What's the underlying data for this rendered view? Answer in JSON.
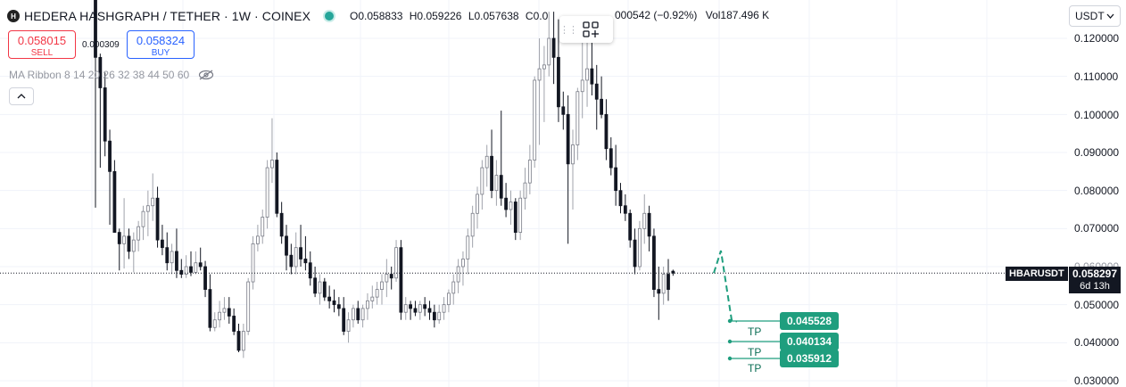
{
  "header": {
    "symbol_initial": "H",
    "title": "HEDERA HASHGRAPH / TETHER · 1W · COINEX",
    "open": "O0.058833",
    "high": "H0.059226",
    "low": "L0.057638",
    "close": "C0.0",
    "change": "000542 (−0.92%)",
    "volume": "Vol187.496 K"
  },
  "trade": {
    "sell_price": "0.058015",
    "sell_label": "SELL",
    "spread": "0.000309",
    "buy_price": "0.058324",
    "buy_label": "BUY"
  },
  "indicator": {
    "name": "MA Ribbon 8 14 20 26 32 38 44 50 60"
  },
  "currency": {
    "value": "USDT"
  },
  "price_axis": {
    "labels": [
      "0.120000",
      "0.110000",
      "0.100000",
      "0.090000",
      "0.080000",
      "0.070000",
      "0.050000",
      "0.040000",
      "0.030000"
    ],
    "partial_label": "0.060000"
  },
  "current": {
    "symbol": "HBARUSDT",
    "price": "0.058297",
    "countdown": "6d 13h",
    "value": 0.058297
  },
  "targets": [
    {
      "label": "TP",
      "price": "0.045528",
      "value": 0.045528
    },
    {
      "label": "TP",
      "price": "0.040134",
      "value": 0.040134
    },
    {
      "label": "TP",
      "price": "0.035912",
      "value": 0.035912
    }
  ],
  "colors": {
    "candle": "#131722",
    "tp": "#1f9e7e",
    "tp_line": "#1f9e7e",
    "projection": "#1f9e7e",
    "sell": "#f23645",
    "buy": "#2962ff"
  },
  "chart_data": {
    "type": "candlestick",
    "y_range": [
      0.028,
      0.13
    ],
    "projection": [
      0.058297,
      0.0642,
      0.0535,
      0.046,
      0.045528
    ],
    "candles": [
      {
        "o": 0.1318,
        "h": 0.1318,
        "l": 0.0755,
        "c": 0.115
      },
      {
        "o": 0.115,
        "h": 0.116,
        "l": 0.086,
        "c": 0.107
      },
      {
        "o": 0.107,
        "h": 0.111,
        "l": 0.089,
        "c": 0.093
      },
      {
        "o": 0.093,
        "h": 0.096,
        "l": 0.071,
        "c": 0.085
      },
      {
        "o": 0.085,
        "h": 0.088,
        "l": 0.069,
        "c": 0.069
      },
      {
        "o": 0.069,
        "h": 0.07,
        "l": 0.059,
        "c": 0.066
      },
      {
        "o": 0.066,
        "h": 0.078,
        "l": 0.0595,
        "c": 0.068
      },
      {
        "o": 0.068,
        "h": 0.07,
        "l": 0.062,
        "c": 0.064
      },
      {
        "o": 0.064,
        "h": 0.069,
        "l": 0.0585,
        "c": 0.067
      },
      {
        "o": 0.067,
        "h": 0.072,
        "l": 0.064,
        "c": 0.0705
      },
      {
        "o": 0.0705,
        "h": 0.076,
        "l": 0.067,
        "c": 0.0745
      },
      {
        "o": 0.0745,
        "h": 0.08,
        "l": 0.068,
        "c": 0.076
      },
      {
        "o": 0.076,
        "h": 0.0845,
        "l": 0.072,
        "c": 0.078
      },
      {
        "o": 0.078,
        "h": 0.081,
        "l": 0.065,
        "c": 0.067
      },
      {
        "o": 0.067,
        "h": 0.071,
        "l": 0.063,
        "c": 0.065
      },
      {
        "o": 0.065,
        "h": 0.069,
        "l": 0.059,
        "c": 0.061
      },
      {
        "o": 0.061,
        "h": 0.066,
        "l": 0.058,
        "c": 0.064
      },
      {
        "o": 0.064,
        "h": 0.07,
        "l": 0.057,
        "c": 0.059
      },
      {
        "o": 0.059,
        "h": 0.062,
        "l": 0.057,
        "c": 0.058
      },
      {
        "o": 0.058,
        "h": 0.063,
        "l": 0.057,
        "c": 0.06
      },
      {
        "o": 0.06,
        "h": 0.064,
        "l": 0.0575,
        "c": 0.0585
      },
      {
        "o": 0.0585,
        "h": 0.064,
        "l": 0.058,
        "c": 0.061
      },
      {
        "o": 0.061,
        "h": 0.065,
        "l": 0.059,
        "c": 0.06
      },
      {
        "o": 0.06,
        "h": 0.0615,
        "l": 0.052,
        "c": 0.054
      },
      {
        "o": 0.054,
        "h": 0.058,
        "l": 0.043,
        "c": 0.044
      },
      {
        "o": 0.044,
        "h": 0.048,
        "l": 0.043,
        "c": 0.046
      },
      {
        "o": 0.046,
        "h": 0.051,
        "l": 0.044,
        "c": 0.048
      },
      {
        "o": 0.048,
        "h": 0.052,
        "l": 0.046,
        "c": 0.049
      },
      {
        "o": 0.049,
        "h": 0.052,
        "l": 0.045,
        "c": 0.047
      },
      {
        "o": 0.047,
        "h": 0.049,
        "l": 0.042,
        "c": 0.043
      },
      {
        "o": 0.043,
        "h": 0.045,
        "l": 0.0375,
        "c": 0.038
      },
      {
        "o": 0.038,
        "h": 0.045,
        "l": 0.036,
        "c": 0.043
      },
      {
        "o": 0.043,
        "h": 0.057,
        "l": 0.042,
        "c": 0.056
      },
      {
        "o": 0.056,
        "h": 0.068,
        "l": 0.054,
        "c": 0.066
      },
      {
        "o": 0.066,
        "h": 0.071,
        "l": 0.064,
        "c": 0.068
      },
      {
        "o": 0.068,
        "h": 0.075,
        "l": 0.066,
        "c": 0.073
      },
      {
        "o": 0.073,
        "h": 0.088,
        "l": 0.07,
        "c": 0.086
      },
      {
        "o": 0.086,
        "h": 0.099,
        "l": 0.082,
        "c": 0.088
      },
      {
        "o": 0.088,
        "h": 0.09,
        "l": 0.073,
        "c": 0.074
      },
      {
        "o": 0.074,
        "h": 0.077,
        "l": 0.066,
        "c": 0.068
      },
      {
        "o": 0.068,
        "h": 0.071,
        "l": 0.059,
        "c": 0.063
      },
      {
        "o": 0.063,
        "h": 0.066,
        "l": 0.058,
        "c": 0.06
      },
      {
        "o": 0.06,
        "h": 0.069,
        "l": 0.058,
        "c": 0.065
      },
      {
        "o": 0.065,
        "h": 0.071,
        "l": 0.06,
        "c": 0.062
      },
      {
        "o": 0.062,
        "h": 0.068,
        "l": 0.059,
        "c": 0.061
      },
      {
        "o": 0.061,
        "h": 0.064,
        "l": 0.055,
        "c": 0.057
      },
      {
        "o": 0.057,
        "h": 0.06,
        "l": 0.052,
        "c": 0.053
      },
      {
        "o": 0.053,
        "h": 0.058,
        "l": 0.05,
        "c": 0.056
      },
      {
        "o": 0.056,
        "h": 0.057,
        "l": 0.051,
        "c": 0.052
      },
      {
        "o": 0.052,
        "h": 0.055,
        "l": 0.049,
        "c": 0.051
      },
      {
        "o": 0.051,
        "h": 0.054,
        "l": 0.048,
        "c": 0.05
      },
      {
        "o": 0.05,
        "h": 0.052,
        "l": 0.047,
        "c": 0.049
      },
      {
        "o": 0.049,
        "h": 0.052,
        "l": 0.042,
        "c": 0.043
      },
      {
        "o": 0.043,
        "h": 0.048,
        "l": 0.04,
        "c": 0.046
      },
      {
        "o": 0.046,
        "h": 0.05,
        "l": 0.044,
        "c": 0.049
      },
      {
        "o": 0.049,
        "h": 0.051,
        "l": 0.045,
        "c": 0.046
      },
      {
        "o": 0.046,
        "h": 0.05,
        "l": 0.044,
        "c": 0.049
      },
      {
        "o": 0.049,
        "h": 0.053,
        "l": 0.046,
        "c": 0.051
      },
      {
        "o": 0.051,
        "h": 0.055,
        "l": 0.049,
        "c": 0.052
      },
      {
        "o": 0.052,
        "h": 0.056,
        "l": 0.05,
        "c": 0.054
      },
      {
        "o": 0.054,
        "h": 0.058,
        "l": 0.05,
        "c": 0.056
      },
      {
        "o": 0.056,
        "h": 0.062,
        "l": 0.052,
        "c": 0.058
      },
      {
        "o": 0.058,
        "h": 0.06,
        "l": 0.054,
        "c": 0.057
      },
      {
        "o": 0.057,
        "h": 0.067,
        "l": 0.056,
        "c": 0.065
      },
      {
        "o": 0.065,
        "h": 0.067,
        "l": 0.046,
        "c": 0.048
      },
      {
        "o": 0.048,
        "h": 0.052,
        "l": 0.046,
        "c": 0.05
      },
      {
        "o": 0.05,
        "h": 0.051,
        "l": 0.046,
        "c": 0.049
      },
      {
        "o": 0.049,
        "h": 0.051,
        "l": 0.047,
        "c": 0.048
      },
      {
        "o": 0.048,
        "h": 0.051,
        "l": 0.046,
        "c": 0.05
      },
      {
        "o": 0.05,
        "h": 0.052,
        "l": 0.047,
        "c": 0.049
      },
      {
        "o": 0.049,
        "h": 0.051,
        "l": 0.046,
        "c": 0.048
      },
      {
        "o": 0.048,
        "h": 0.05,
        "l": 0.044,
        "c": 0.046
      },
      {
        "o": 0.046,
        "h": 0.05,
        "l": 0.045,
        "c": 0.048
      },
      {
        "o": 0.048,
        "h": 0.052,
        "l": 0.046,
        "c": 0.05
      },
      {
        "o": 0.05,
        "h": 0.054,
        "l": 0.048,
        "c": 0.053
      },
      {
        "o": 0.053,
        "h": 0.058,
        "l": 0.05,
        "c": 0.056
      },
      {
        "o": 0.056,
        "h": 0.062,
        "l": 0.053,
        "c": 0.06
      },
      {
        "o": 0.06,
        "h": 0.064,
        "l": 0.055,
        "c": 0.062
      },
      {
        "o": 0.062,
        "h": 0.07,
        "l": 0.058,
        "c": 0.068
      },
      {
        "o": 0.068,
        "h": 0.076,
        "l": 0.065,
        "c": 0.074
      },
      {
        "o": 0.074,
        "h": 0.081,
        "l": 0.07,
        "c": 0.079
      },
      {
        "o": 0.079,
        "h": 0.088,
        "l": 0.075,
        "c": 0.086
      },
      {
        "o": 0.086,
        "h": 0.092,
        "l": 0.081,
        "c": 0.089
      },
      {
        "o": 0.089,
        "h": 0.096,
        "l": 0.078,
        "c": 0.08
      },
      {
        "o": 0.08,
        "h": 0.088,
        "l": 0.076,
        "c": 0.084
      },
      {
        "o": 0.084,
        "h": 0.101,
        "l": 0.076,
        "c": 0.078
      },
      {
        "o": 0.078,
        "h": 0.082,
        "l": 0.073,
        "c": 0.075
      },
      {
        "o": 0.075,
        "h": 0.08,
        "l": 0.071,
        "c": 0.077
      },
      {
        "o": 0.077,
        "h": 0.078,
        "l": 0.067,
        "c": 0.069
      },
      {
        "o": 0.069,
        "h": 0.08,
        "l": 0.067,
        "c": 0.078
      },
      {
        "o": 0.078,
        "h": 0.086,
        "l": 0.075,
        "c": 0.082
      },
      {
        "o": 0.082,
        "h": 0.092,
        "l": 0.079,
        "c": 0.088
      },
      {
        "o": 0.088,
        "h": 0.11,
        "l": 0.086,
        "c": 0.109
      },
      {
        "o": 0.109,
        "h": 0.12,
        "l": 0.092,
        "c": 0.112
      },
      {
        "o": 0.112,
        "h": 0.118,
        "l": 0.098,
        "c": 0.113
      },
      {
        "o": 0.113,
        "h": 0.127,
        "l": 0.11,
        "c": 0.12
      },
      {
        "o": 0.12,
        "h": 0.127,
        "l": 0.108,
        "c": 0.115
      },
      {
        "o": 0.115,
        "h": 0.125,
        "l": 0.098,
        "c": 0.102
      },
      {
        "o": 0.102,
        "h": 0.106,
        "l": 0.096,
        "c": 0.1
      },
      {
        "o": 0.1,
        "h": 0.105,
        "l": 0.066,
        "c": 0.087
      },
      {
        "o": 0.087,
        "h": 0.096,
        "l": 0.075,
        "c": 0.092
      },
      {
        "o": 0.092,
        "h": 0.107,
        "l": 0.088,
        "c": 0.106
      },
      {
        "o": 0.106,
        "h": 0.12,
        "l": 0.099,
        "c": 0.109
      },
      {
        "o": 0.109,
        "h": 0.12,
        "l": 0.102,
        "c": 0.112
      },
      {
        "o": 0.112,
        "h": 0.123,
        "l": 0.105,
        "c": 0.108
      },
      {
        "o": 0.108,
        "h": 0.113,
        "l": 0.096,
        "c": 0.104
      },
      {
        "o": 0.104,
        "h": 0.11,
        "l": 0.099,
        "c": 0.1
      },
      {
        "o": 0.1,
        "h": 0.104,
        "l": 0.088,
        "c": 0.091
      },
      {
        "o": 0.091,
        "h": 0.094,
        "l": 0.084,
        "c": 0.086
      },
      {
        "o": 0.086,
        "h": 0.092,
        "l": 0.076,
        "c": 0.08
      },
      {
        "o": 0.08,
        "h": 0.082,
        "l": 0.074,
        "c": 0.076
      },
      {
        "o": 0.076,
        "h": 0.079,
        "l": 0.072,
        "c": 0.074
      },
      {
        "o": 0.074,
        "h": 0.075,
        "l": 0.065,
        "c": 0.067
      },
      {
        "o": 0.067,
        "h": 0.07,
        "l": 0.058,
        "c": 0.06
      },
      {
        "o": 0.06,
        "h": 0.072,
        "l": 0.059,
        "c": 0.07
      },
      {
        "o": 0.07,
        "h": 0.079,
        "l": 0.066,
        "c": 0.074
      },
      {
        "o": 0.074,
        "h": 0.076,
        "l": 0.064,
        "c": 0.068
      },
      {
        "o": 0.068,
        "h": 0.07,
        "l": 0.052,
        "c": 0.054
      },
      {
        "o": 0.054,
        "h": 0.06,
        "l": 0.046,
        "c": 0.053
      },
      {
        "o": 0.053,
        "h": 0.06,
        "l": 0.05,
        "c": 0.058
      },
      {
        "o": 0.058,
        "h": 0.062,
        "l": 0.051,
        "c": 0.054
      },
      {
        "o": 0.0588,
        "h": 0.0592,
        "l": 0.0576,
        "c": 0.0583
      }
    ]
  }
}
